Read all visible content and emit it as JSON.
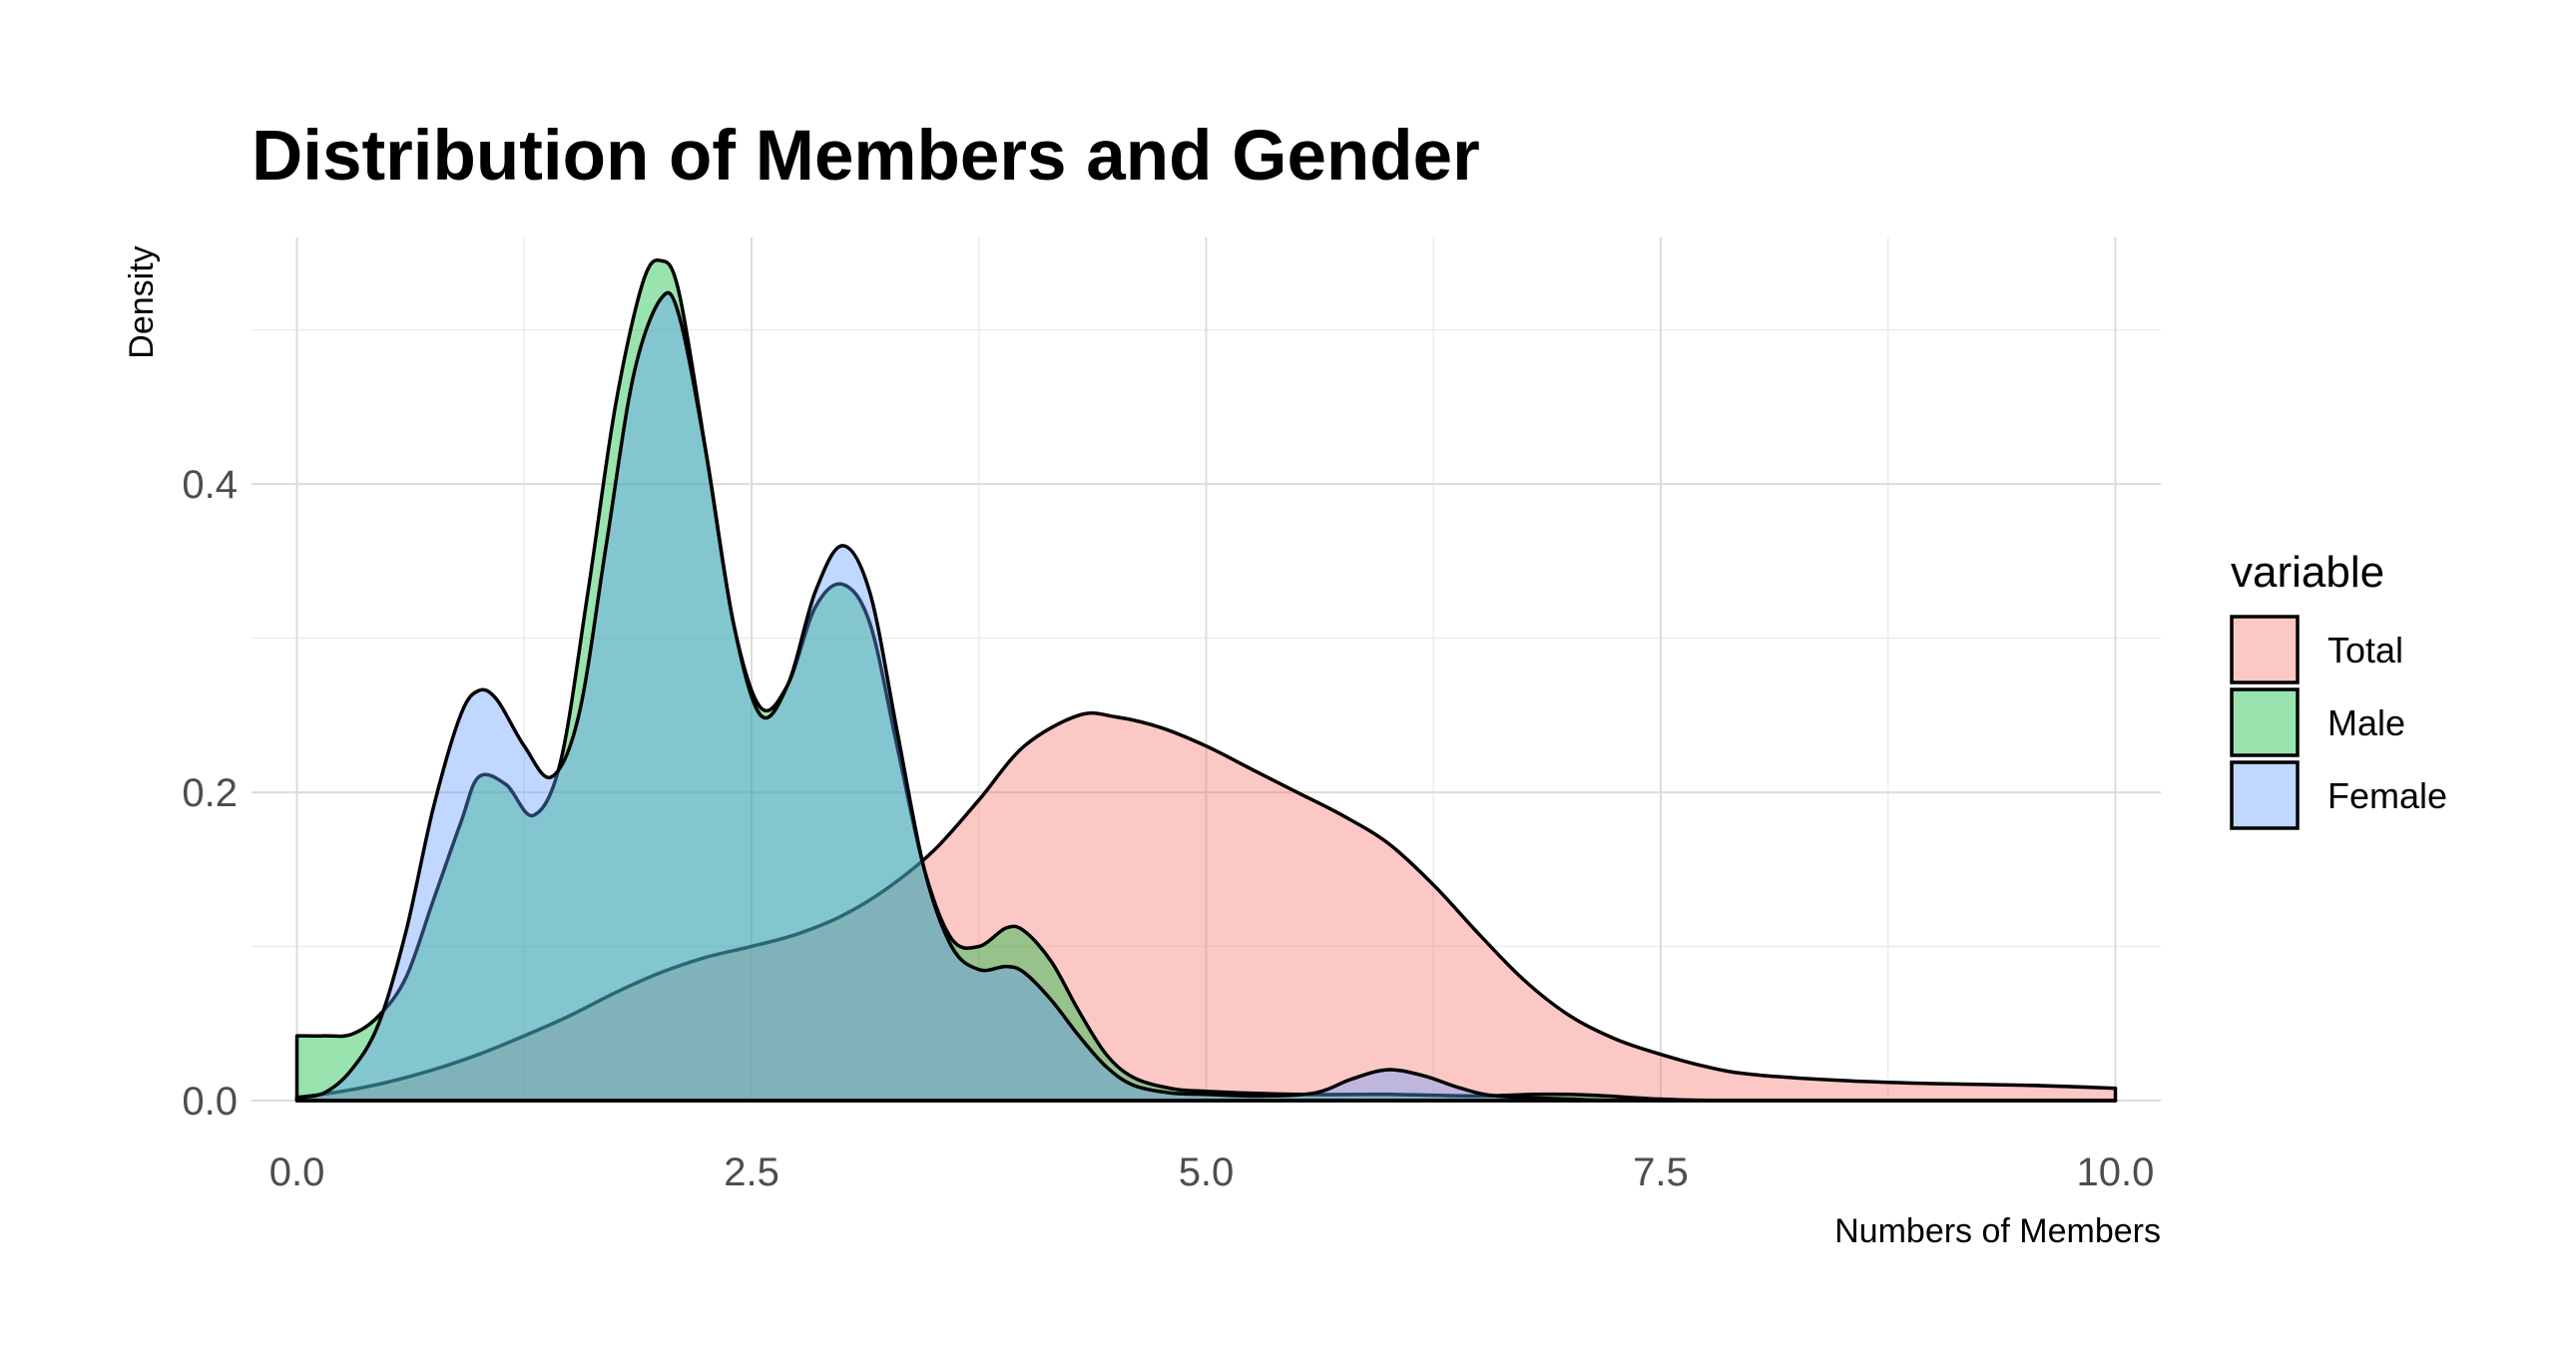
{
  "chart_data": {
    "type": "area",
    "title": "Distribution of Members and Gender",
    "xlabel": "Numbers of Members",
    "ylabel": "Density",
    "xlim": [
      -0.25,
      10.25
    ],
    "ylim": [
      0,
      0.56
    ],
    "x_ticks": [
      0,
      2.5,
      5,
      7.5,
      10
    ],
    "x_tick_labels": [
      "0.0",
      "2.5",
      "5.0",
      "7.5",
      "10.0"
    ],
    "y_ticks": [
      0,
      0.2,
      0.4
    ],
    "y_tick_labels": [
      "0.0",
      "0.2",
      "0.4"
    ],
    "grid": true,
    "legend": {
      "title": "variable",
      "position": "right"
    },
    "series": [
      {
        "name": "Total",
        "color": "#F8766D",
        "points": [
          [
            0,
            0.002
          ],
          [
            0.25,
            0.006
          ],
          [
            0.5,
            0.012
          ],
          [
            0.75,
            0.02
          ],
          [
            1.0,
            0.03
          ],
          [
            1.25,
            0.042
          ],
          [
            1.5,
            0.055
          ],
          [
            1.75,
            0.07
          ],
          [
            2.0,
            0.083
          ],
          [
            2.25,
            0.093
          ],
          [
            2.5,
            0.1
          ],
          [
            2.75,
            0.108
          ],
          [
            3.0,
            0.12
          ],
          [
            3.25,
            0.138
          ],
          [
            3.5,
            0.162
          ],
          [
            3.75,
            0.195
          ],
          [
            4.0,
            0.23
          ],
          [
            4.3,
            0.25
          ],
          [
            4.5,
            0.249
          ],
          [
            4.75,
            0.242
          ],
          [
            5.0,
            0.23
          ],
          [
            5.25,
            0.215
          ],
          [
            5.5,
            0.2
          ],
          [
            5.75,
            0.185
          ],
          [
            6.0,
            0.167
          ],
          [
            6.25,
            0.14
          ],
          [
            6.5,
            0.108
          ],
          [
            6.75,
            0.078
          ],
          [
            7.0,
            0.055
          ],
          [
            7.25,
            0.04
          ],
          [
            7.5,
            0.03
          ],
          [
            7.75,
            0.022
          ],
          [
            8.0,
            0.017
          ],
          [
            8.5,
            0.013
          ],
          [
            9.0,
            0.011
          ],
          [
            9.5,
            0.01
          ],
          [
            10.0,
            0.008
          ]
        ]
      },
      {
        "name": "Male",
        "color": "#00BA38",
        "points": [
          [
            0,
            0.042
          ],
          [
            0.15,
            0.042
          ],
          [
            0.3,
            0.043
          ],
          [
            0.45,
            0.055
          ],
          [
            0.6,
            0.08
          ],
          [
            0.75,
            0.13
          ],
          [
            0.9,
            0.18
          ],
          [
            1.0,
            0.21
          ],
          [
            1.15,
            0.205
          ],
          [
            1.3,
            0.185
          ],
          [
            1.45,
            0.22
          ],
          [
            1.6,
            0.33
          ],
          [
            1.75,
            0.45
          ],
          [
            1.9,
            0.53
          ],
          [
            2.0,
            0.545
          ],
          [
            2.1,
            0.525
          ],
          [
            2.25,
            0.42
          ],
          [
            2.4,
            0.31
          ],
          [
            2.55,
            0.255
          ],
          [
            2.7,
            0.27
          ],
          [
            2.85,
            0.32
          ],
          [
            3.0,
            0.335
          ],
          [
            3.15,
            0.31
          ],
          [
            3.3,
            0.23
          ],
          [
            3.45,
            0.15
          ],
          [
            3.6,
            0.105
          ],
          [
            3.75,
            0.1
          ],
          [
            3.9,
            0.112
          ],
          [
            4.0,
            0.11
          ],
          [
            4.15,
            0.09
          ],
          [
            4.3,
            0.058
          ],
          [
            4.45,
            0.03
          ],
          [
            4.6,
            0.015
          ],
          [
            4.8,
            0.008
          ],
          [
            5.0,
            0.006
          ],
          [
            5.5,
            0.004
          ],
          [
            6.0,
            0.004
          ],
          [
            6.5,
            0.003
          ],
          [
            6.8,
            0.004
          ],
          [
            7.0,
            0.004
          ],
          [
            7.2,
            0.003
          ],
          [
            7.5,
            0.001
          ],
          [
            8.0,
            0.0
          ],
          [
            10.0,
            0.0
          ]
        ]
      },
      {
        "name": "Female",
        "color": "#619CFF",
        "points": [
          [
            0,
            0.002
          ],
          [
            0.15,
            0.005
          ],
          [
            0.3,
            0.02
          ],
          [
            0.45,
            0.05
          ],
          [
            0.6,
            0.11
          ],
          [
            0.75,
            0.19
          ],
          [
            0.9,
            0.25
          ],
          [
            1.0,
            0.266
          ],
          [
            1.1,
            0.26
          ],
          [
            1.25,
            0.23
          ],
          [
            1.4,
            0.21
          ],
          [
            1.55,
            0.25
          ],
          [
            1.7,
            0.36
          ],
          [
            1.85,
            0.47
          ],
          [
            2.0,
            0.52
          ],
          [
            2.1,
            0.51
          ],
          [
            2.25,
            0.42
          ],
          [
            2.4,
            0.31
          ],
          [
            2.55,
            0.25
          ],
          [
            2.7,
            0.27
          ],
          [
            2.85,
            0.33
          ],
          [
            3.0,
            0.36
          ],
          [
            3.15,
            0.33
          ],
          [
            3.3,
            0.24
          ],
          [
            3.45,
            0.15
          ],
          [
            3.6,
            0.1
          ],
          [
            3.75,
            0.085
          ],
          [
            3.9,
            0.087
          ],
          [
            4.0,
            0.083
          ],
          [
            4.15,
            0.065
          ],
          [
            4.3,
            0.042
          ],
          [
            4.45,
            0.022
          ],
          [
            4.6,
            0.01
          ],
          [
            4.8,
            0.005
          ],
          [
            5.0,
            0.004
          ],
          [
            5.3,
            0.003
          ],
          [
            5.6,
            0.005
          ],
          [
            5.8,
            0.014
          ],
          [
            6.0,
            0.02
          ],
          [
            6.2,
            0.016
          ],
          [
            6.4,
            0.008
          ],
          [
            6.6,
            0.003
          ],
          [
            7.0,
            0.001
          ],
          [
            7.5,
            0.0
          ],
          [
            10.0,
            0.0
          ]
        ]
      }
    ]
  }
}
